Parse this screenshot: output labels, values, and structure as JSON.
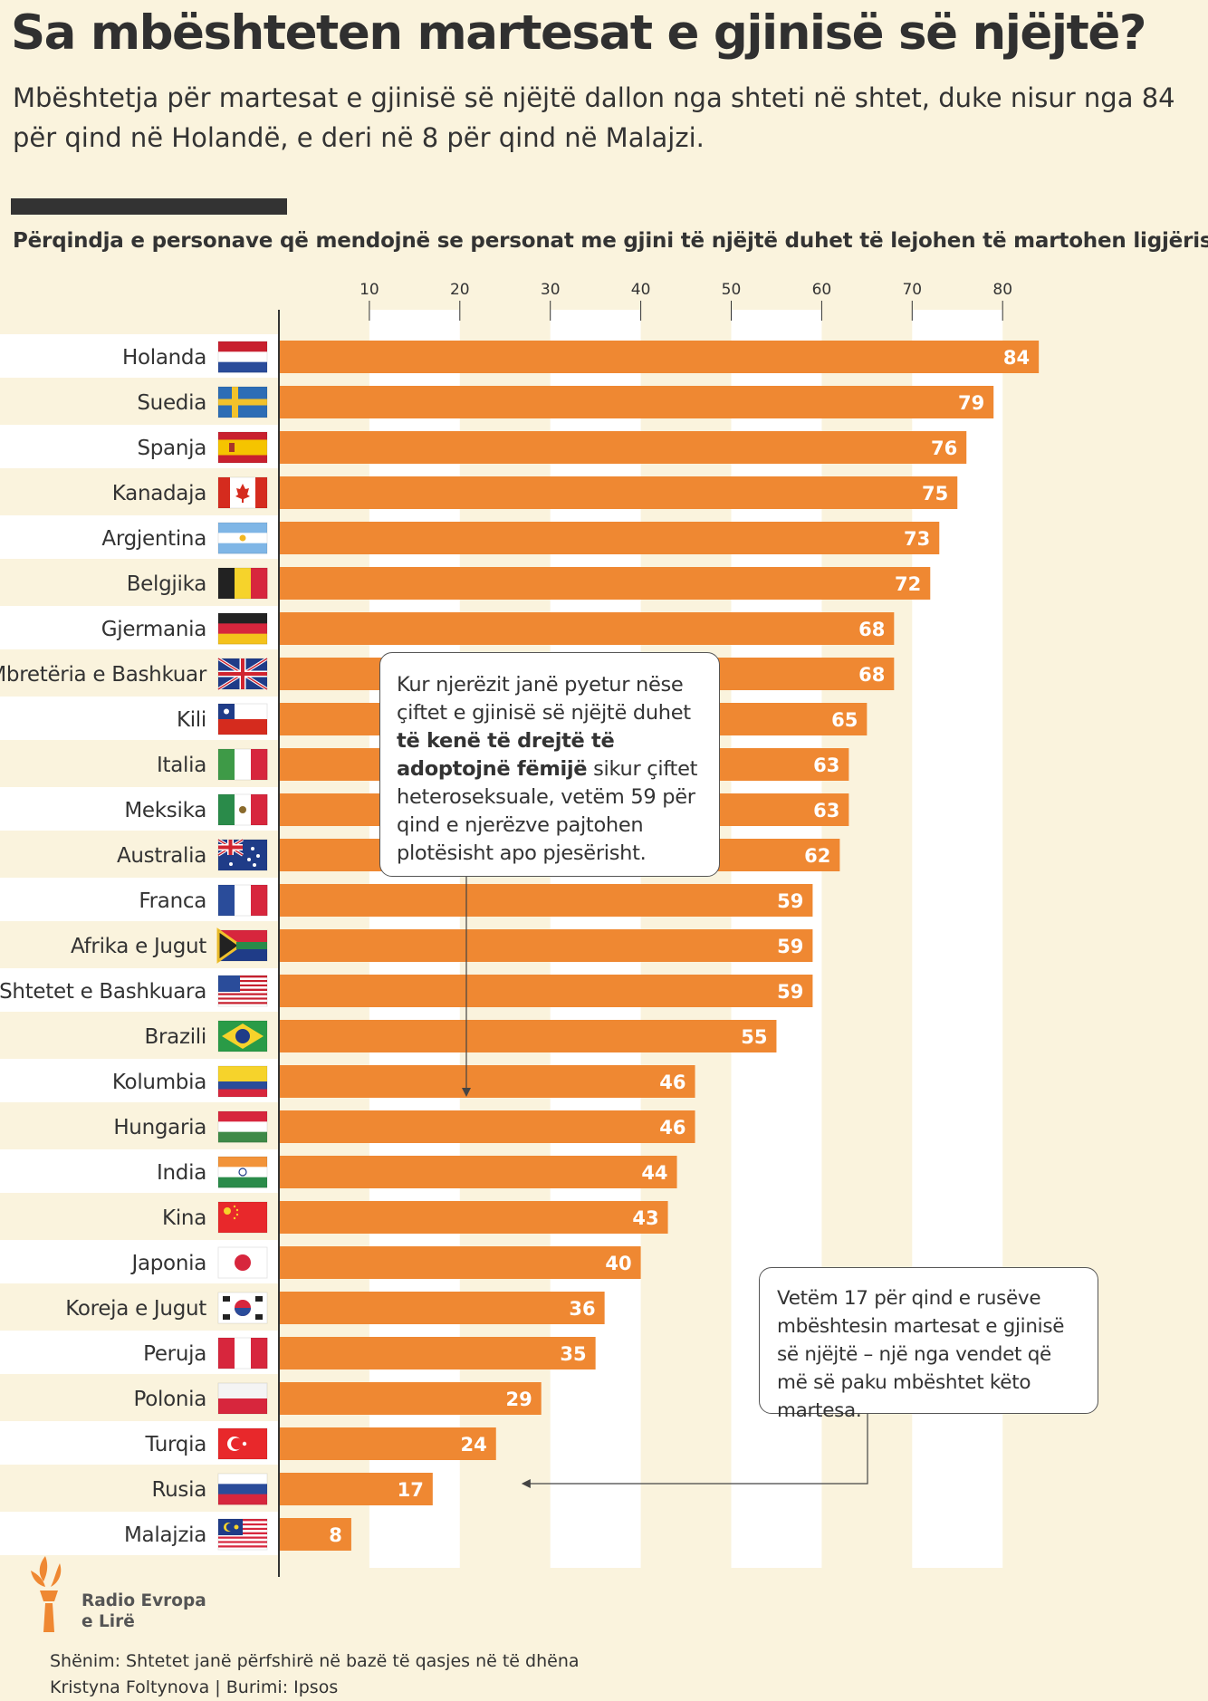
{
  "title": "Sa mbështeten martesat e gjinisë së njëjtë?",
  "subtitle": "Mbështetja për martesat e gjinisë së njëjtë dallon nga shteti në shtet, duke nisur nga 84 për qind në Holandë, e deri në 8 për qind në Malajzi.",
  "axis_caption": "Përqindja e personave që mendojnë se personat me gjini të njëjtë duhet të lejohen të martohen ligjërisht.",
  "callouts": [
    {
      "parts": [
        {
          "text": "Kur njerëzit janë pyetur nëse çiftet e gjinisë së njëjtë duhet ",
          "bold": false
        },
        {
          "text": "të kenë të drejtë të adoptojnë fëmijë",
          "bold": true
        },
        {
          "text": " sikur çiftet heteroseksuale, vetëm 59 për qind e njerëzve pajtohen plotësisht apo pjesërisht.",
          "bold": false
        }
      ]
    },
    {
      "parts": [
        {
          "text": "Vetëm 17 për qind e rusëve mbështesin martesat e gjinisë së njëjtë – një nga vendet që më së paku mbështet këto martesa.",
          "bold": false
        }
      ]
    }
  ],
  "logo": {
    "line1": "Radio Evropa",
    "line2": "e Lirë"
  },
  "footnote": {
    "line1": "Shënim: Shtetet janë përfshirë në bazë të qasjes në të dhëna",
    "line2": "Kristyna Foltynova | Burimi: Ipsos"
  },
  "colors": {
    "bar": "#ef8832",
    "background": "#faf3dd",
    "band": "#ffffff",
    "text": "#333333",
    "axis": "#333333"
  },
  "chart_data": {
    "type": "bar",
    "orientation": "horizontal",
    "title": "",
    "categories": [
      "Holanda",
      "Suedia",
      "Spanja",
      "Kanadaja",
      "Argjentina",
      "Belgjika",
      "Gjermania",
      "Mbretëria e Bashkuar",
      "Kili",
      "Italia",
      "Meksika",
      "Australia",
      "Franca",
      "Afrika e Jugut",
      "Shtetet e Bashkuara",
      "Brazili",
      "Kolumbia",
      "Hungaria",
      "India",
      "Kina",
      "Japonia",
      "Koreja e Jugut",
      "Peruja",
      "Polonia",
      "Turqia",
      "Rusia",
      "Malajzia"
    ],
    "values": [
      84,
      79,
      76,
      75,
      73,
      72,
      68,
      68,
      65,
      63,
      63,
      62,
      59,
      59,
      59,
      55,
      46,
      46,
      44,
      43,
      40,
      36,
      35,
      29,
      24,
      17,
      8
    ],
    "flags": [
      "netherlands-flag-icon",
      "sweden-flag-icon",
      "spain-flag-icon",
      "canada-flag-icon",
      "argentina-flag-icon",
      "belgium-flag-icon",
      "germany-flag-icon",
      "united-kingdom-flag-icon",
      "chile-flag-icon",
      "italy-flag-icon",
      "mexico-flag-icon",
      "australia-flag-icon",
      "france-flag-icon",
      "south-africa-flag-icon",
      "united-states-flag-icon",
      "brazil-flag-icon",
      "colombia-flag-icon",
      "hungary-flag-icon",
      "india-flag-icon",
      "china-flag-icon",
      "japan-flag-icon",
      "south-korea-flag-icon",
      "peru-flag-icon",
      "poland-flag-icon",
      "turkey-flag-icon",
      "russia-flag-icon",
      "malaysia-flag-icon"
    ],
    "xticks": [
      10,
      20,
      30,
      40,
      50,
      60,
      70,
      80
    ],
    "xlim": [
      0,
      84
    ],
    "xlabel": "",
    "ylabel": "",
    "grid": "alternating vertical bands",
    "data_labels": true
  }
}
